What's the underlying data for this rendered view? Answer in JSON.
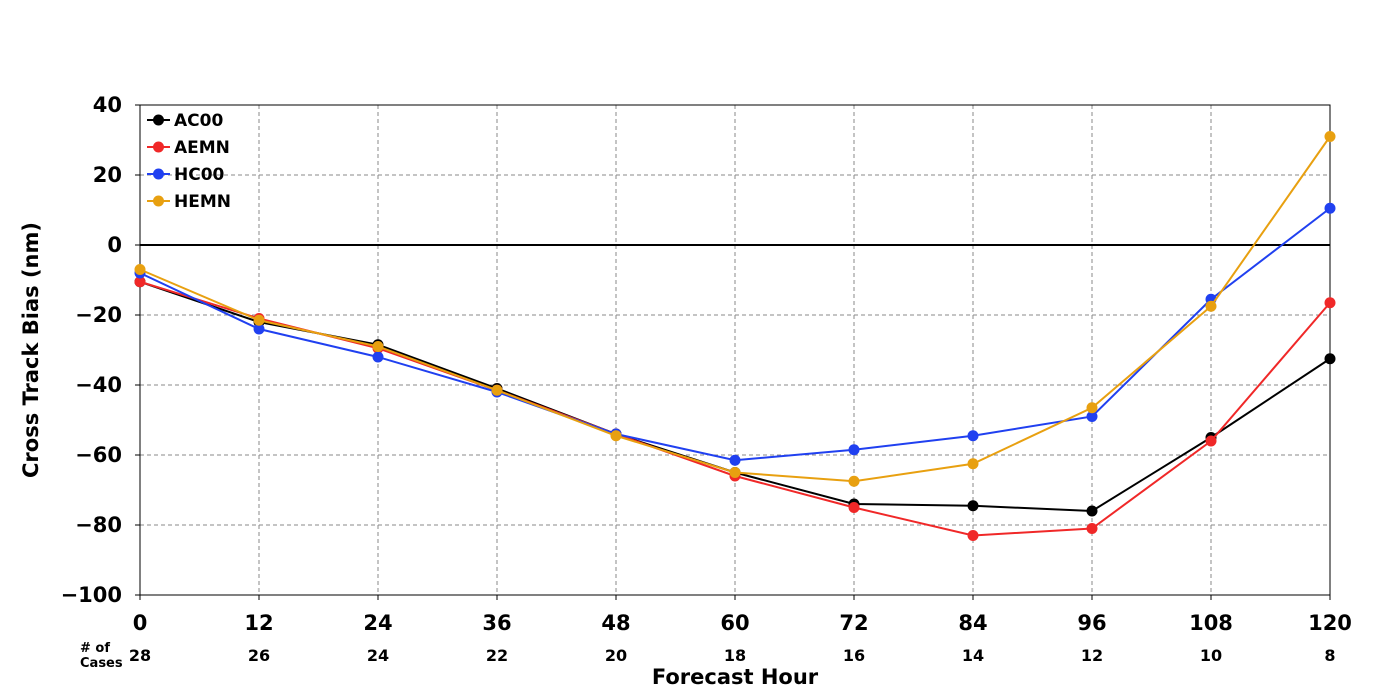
{
  "chart_data": {
    "type": "line",
    "title": "",
    "xlabel": "Forecast Hour",
    "ylabel": "Cross Track Bias (nm)",
    "x": [
      0,
      12,
      24,
      36,
      48,
      60,
      72,
      84,
      96,
      108,
      120
    ],
    "xlim": [
      0,
      120
    ],
    "ylim": [
      -100,
      40
    ],
    "xticks": [
      "0",
      "12",
      "24",
      "36",
      "48",
      "60",
      "72",
      "84",
      "96",
      "108",
      "120"
    ],
    "yticks": [
      40,
      20,
      0,
      -20,
      -40,
      -60,
      -80,
      -100
    ],
    "ytick_labels": [
      "40",
      "20",
      "0",
      "−20",
      "−40",
      "−60",
      "−80",
      "−100"
    ],
    "grid": true,
    "legend_position": "top-left",
    "cases_label": "# of\nCases",
    "cases": [
      "28",
      "26",
      "24",
      "22",
      "20",
      "18",
      "16",
      "14",
      "12",
      "10",
      "8"
    ],
    "series": [
      {
        "name": "AC00",
        "color": "#000000",
        "values": [
          -10.5,
          -22,
          -28.5,
          -41,
          -54,
          -65,
          -74,
          -74.5,
          -76,
          -55,
          -32.5
        ]
      },
      {
        "name": "AEMN",
        "color": "#f02828",
        "values": [
          -10.5,
          -21,
          -29.5,
          -41.5,
          -54,
          -66,
          -75,
          -83,
          -81,
          -56,
          -16.5
        ]
      },
      {
        "name": "HC00",
        "color": "#2040f0",
        "values": [
          -8,
          -24,
          -32,
          -42,
          -54,
          -61.5,
          -58.5,
          -54.5,
          -49,
          -15.5,
          10.5
        ]
      },
      {
        "name": "HEMN",
        "color": "#e8a010",
        "values": [
          -7,
          -21.5,
          -29,
          -41.5,
          -54.5,
          -65,
          -67.5,
          -62.5,
          -46.5,
          -17.5,
          31
        ]
      }
    ]
  }
}
